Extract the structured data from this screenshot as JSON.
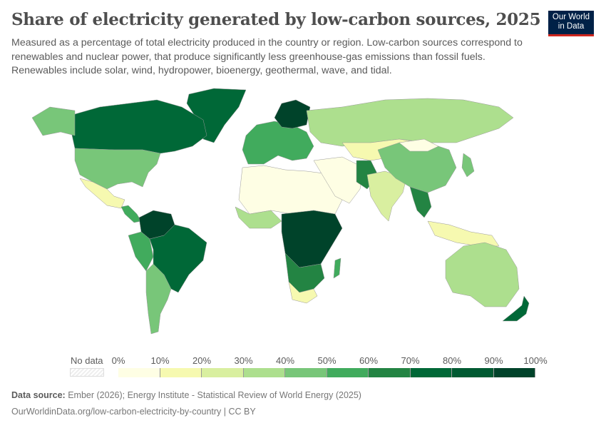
{
  "header": {
    "title": "Share of electricity generated by low-carbon sources, 2025",
    "subtitle": "Measured as a percentage of total electricity produced in the country or region. Low-carbon sources correspond to renewables and nuclear power, that produce significantly less greenhouse-gas emissions than fossil fuels. Renewables include solar, wind, hydropower, bioenergy, geothermal, wave, and tidal.",
    "logo": "Our World in Data"
  },
  "legend": {
    "no_data_label": "No data",
    "ticks": [
      "0%",
      "10%",
      "20%",
      "30%",
      "40%",
      "50%",
      "60%",
      "70%",
      "80%",
      "90%",
      "100%"
    ],
    "bins": [
      {
        "range": [
          0,
          10
        ],
        "color": "#fefee4"
      },
      {
        "range": [
          10,
          20
        ],
        "color": "#f6f9b0"
      },
      {
        "range": [
          20,
          30
        ],
        "color": "#d9efa0"
      },
      {
        "range": [
          30,
          40
        ],
        "color": "#addf8e"
      },
      {
        "range": [
          40,
          50
        ],
        "color": "#78c679"
      },
      {
        "range": [
          50,
          60
        ],
        "color": "#41ab5d"
      },
      {
        "range": [
          60,
          70
        ],
        "color": "#238443"
      },
      {
        "range": [
          70,
          80
        ],
        "color": "#006837"
      },
      {
        "range": [
          80,
          90
        ],
        "color": "#005a32"
      },
      {
        "range": [
          90,
          100
        ],
        "color": "#00432a"
      }
    ]
  },
  "footer": {
    "source_label": "Data source:",
    "source": "Ember (2026); Energy Institute - Statistical Review of World Energy (2025)",
    "url": "OurWorldinData.org/low-carbon-electricity-by-country | CC BY"
  }
}
